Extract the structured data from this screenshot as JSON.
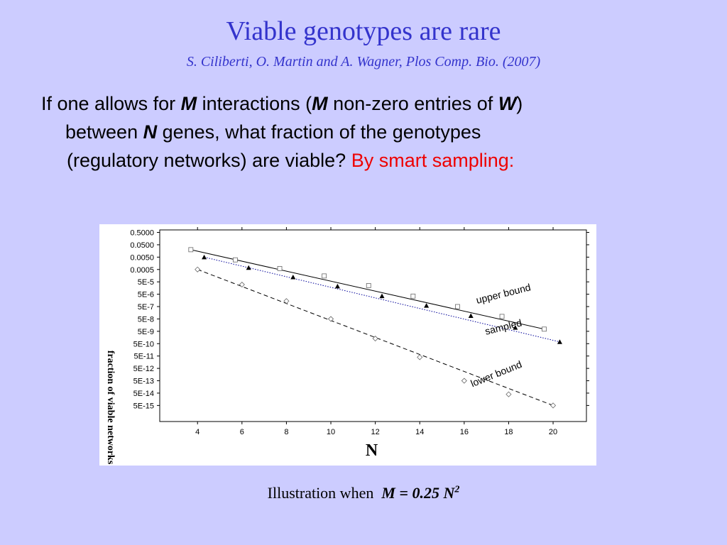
{
  "slide": {
    "title": "Viable genotypes are rare",
    "citation": "S. Ciliberti, O. Martin and A. Wagner, Plos Comp. Bio. (2007)",
    "body": {
      "t1": "If one allows for ",
      "M": "M",
      "t2": " interactions (",
      "t3": " non-zero entries of ",
      "W": "W",
      "t4": ")",
      "t5": "between ",
      "N": "N",
      "t6": " genes, what fraction of the genotypes",
      "t7": "(regulatory networks) are viable? ",
      "red": "By smart sampling:"
    },
    "caption": {
      "prefix": "Illustration when",
      "formula": "M = 0.25 N",
      "exponent": "2"
    }
  },
  "chart_data": {
    "type": "scatter",
    "log_y": true,
    "title": "",
    "xlabel": "N",
    "ylabel": "fraction of viable networks",
    "xlim": [
      2.3,
      21.5
    ],
    "ylim_log10": [
      -15.6,
      -0.1
    ],
    "x_ticks": [
      4,
      6,
      8,
      10,
      12,
      14,
      16,
      18,
      20
    ],
    "y_ticks": [
      {
        "label": "0.5000",
        "value": 0.5
      },
      {
        "label": "0.0500",
        "value": 0.05
      },
      {
        "label": "0.0050",
        "value": 0.005
      },
      {
        "label": "0.0005",
        "value": 0.0005
      },
      {
        "label": "5E-5",
        "value": 5e-05
      },
      {
        "label": "5E-6",
        "value": 5e-06
      },
      {
        "label": "5E-7",
        "value": 5e-07
      },
      {
        "label": "5E-8",
        "value": 5e-08
      },
      {
        "label": "5E-9",
        "value": 5e-09
      },
      {
        "label": "5E-10",
        "value": 5e-10
      },
      {
        "label": "5E-11",
        "value": 5e-11
      },
      {
        "label": "5E-12",
        "value": 5e-12
      },
      {
        "label": "5E-13",
        "value": 5e-13
      },
      {
        "label": "5E-14",
        "value": 5e-14
      },
      {
        "label": "5E-15",
        "value": 5e-15
      }
    ],
    "grid": false,
    "series": [
      {
        "name": "upper bound",
        "marker": "open-square",
        "line": "solid",
        "color": "#000000",
        "fit_x": [
          3.7,
          19.6
        ],
        "fit_y": [
          0.02,
          7.5e-09
        ],
        "points": [
          {
            "x": 3.7,
            "y": 0.02
          },
          {
            "x": 5.7,
            "y": 0.003
          },
          {
            "x": 7.7,
            "y": 0.0006
          },
          {
            "x": 9.7,
            "y": 0.00015
          },
          {
            "x": 11.7,
            "y": 2.5e-05
          },
          {
            "x": 13.7,
            "y": 3.5e-06
          },
          {
            "x": 15.7,
            "y": 5e-07
          },
          {
            "x": 17.7,
            "y": 8e-08
          },
          {
            "x": 19.6,
            "y": 7.5e-09
          }
        ]
      },
      {
        "name": "sampled",
        "marker": "filled-triangle",
        "line": "dotted",
        "color": "#000099",
        "fit_x": [
          4.3,
          20.3
        ],
        "fit_y": [
          0.005,
          7e-10
        ],
        "points": [
          {
            "x": 4.3,
            "y": 0.005
          },
          {
            "x": 6.3,
            "y": 0.0007
          },
          {
            "x": 8.3,
            "y": 0.00012
          },
          {
            "x": 10.3,
            "y": 2.2e-05
          },
          {
            "x": 12.3,
            "y": 3.6e-06
          },
          {
            "x": 14.3,
            "y": 6e-07
          },
          {
            "x": 16.3,
            "y": 9e-08
          },
          {
            "x": 18.3,
            "y": 1e-08
          },
          {
            "x": 20.3,
            "y": 7e-10
          }
        ]
      },
      {
        "name": "lower bound",
        "marker": "open-diamond",
        "line": "dashed",
        "color": "#000000",
        "fit_x": [
          4,
          20
        ],
        "fit_y": [
          0.0005,
          5e-15
        ],
        "points": [
          {
            "x": 4,
            "y": 0.0005
          },
          {
            "x": 6,
            "y": 3e-05
          },
          {
            "x": 8,
            "y": 1.4e-06
          },
          {
            "x": 10,
            "y": 5e-08
          },
          {
            "x": 12,
            "y": 1.3e-09
          },
          {
            "x": 14,
            "y": 4e-11
          },
          {
            "x": 16,
            "y": 5e-13
          },
          {
            "x": 18,
            "y": 4e-14
          },
          {
            "x": 20,
            "y": 5e-15
          }
        ]
      }
    ],
    "annotations": [
      {
        "text": "upper bound",
        "x": 17.8,
        "y": 3e-06,
        "rotate": -14
      },
      {
        "text": "sampled",
        "x": 17.8,
        "y": 6e-09,
        "rotate": -14
      },
      {
        "text": "lower bound",
        "x": 17.5,
        "y": 1e-12,
        "rotate": -22
      }
    ]
  }
}
